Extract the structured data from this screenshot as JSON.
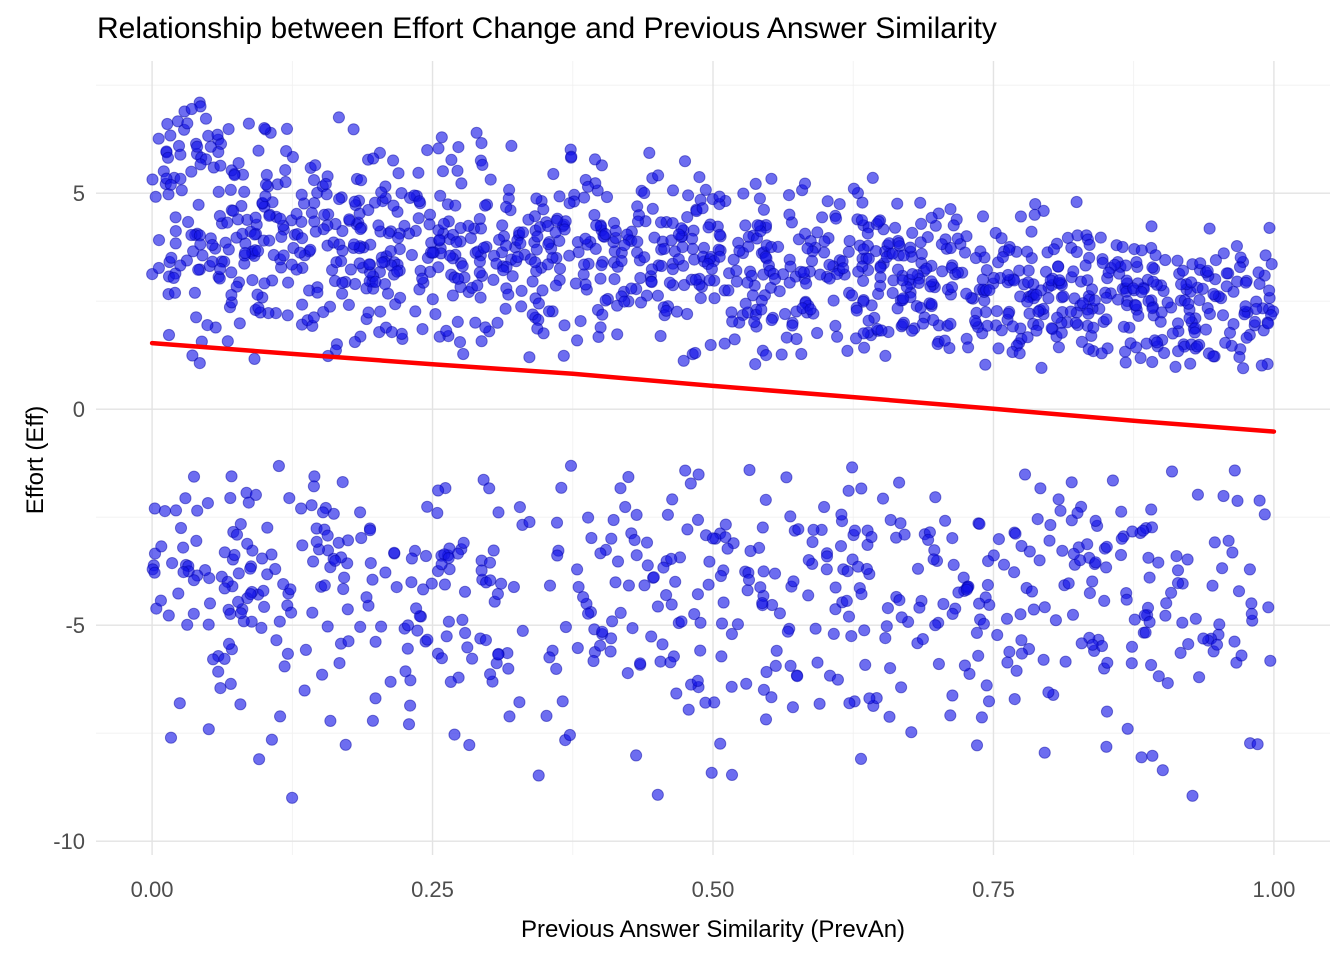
{
  "page": {
    "background": "#FFFFFF"
  },
  "chart_data": {
    "type": "scatter",
    "title": "Relationship between Effort Change and Previous Answer Similarity",
    "xlabel": "Previous Answer Similarity (PrevAn)",
    "ylabel": "Effort (Eff)",
    "legend": {
      "show": false
    },
    "x_ticks": {
      "values": [
        0,
        0.25,
        0.5,
        0.75,
        1.0
      ],
      "labels": [
        "0.00",
        "0.25",
        "0.50",
        "0.75",
        "1.00"
      ]
    },
    "y_ticks": {
      "values": [
        -10,
        -5,
        0,
        5
      ],
      "labels": [
        "-10",
        "-5",
        "0",
        "5"
      ]
    },
    "x_minor": [
      0.125,
      0.375,
      0.625,
      0.875
    ],
    "y_minor": [
      -7.5,
      -2.5,
      2.5,
      7.5
    ],
    "xlim": [
      -0.05,
      1.05
    ],
    "ylim": [
      -10.32,
      8.06
    ],
    "panel_background": "#FFFFFF",
    "grid": {
      "show": true,
      "major_color": "#E3E3E3",
      "major_width": 1.4,
      "minor_color": "#F0F0F0",
      "minor_width": 0.8
    },
    "tick_label_color": "#4D4D4D",
    "tick_label_size": 22,
    "text_color": "#000000",
    "points": {
      "color": "#1414E6",
      "opacity": 0.62,
      "stroke": "#0000A0",
      "stroke_opacity": 0.45,
      "radius": 5.6,
      "seed": 1337,
      "total_count": 1890,
      "bands": [
        {
          "name": "upper-cloud",
          "count": 1250,
          "x_min": 0,
          "x_max": 1,
          "mean_at_x0": 4.35,
          "mean_at_x1": 2.35,
          "sd_at_x0": 1.35,
          "sd_at_x1": 0.8,
          "y_floor_at_x0": 1.05,
          "y_floor_at_x1": 0.9,
          "y_ceil_at_x0": 7.4,
          "y_ceil_at_x1": 4.35
        },
        {
          "name": "lower-cloud",
          "count": 640,
          "x_min": 0,
          "x_max": 1,
          "mean_at_x0": -4.0,
          "mean_at_x1": -4.2,
          "sd_at_x0": 1.85,
          "sd_at_x1": 1.85,
          "y_floor_at_x0": -9.85,
          "y_floor_at_x1": -9.85,
          "y_ceil_at_x0": -1.3,
          "y_ceil_at_x1": -1.3
        }
      ]
    },
    "trend": {
      "type": "loess",
      "color": "#FF0000",
      "width": 4.5,
      "x": [
        0,
        0.125,
        0.25,
        0.375,
        0.5,
        0.625,
        0.75,
        0.875,
        1.0
      ],
      "y": [
        1.53,
        1.28,
        1.04,
        0.82,
        0.54,
        0.28,
        0.01,
        -0.27,
        -0.52
      ]
    }
  }
}
